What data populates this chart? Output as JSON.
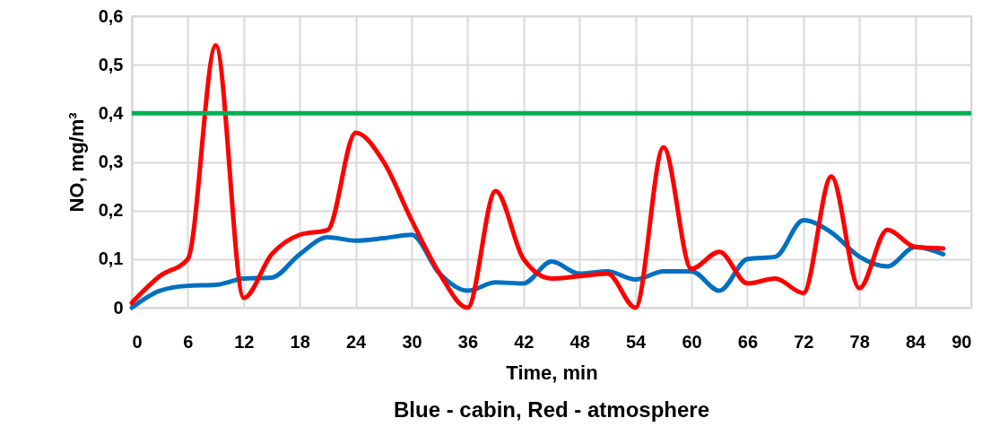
{
  "chart_data": {
    "type": "line",
    "xlabel": "Time, min",
    "ylabel": "NO, mg/m³",
    "annotations": [
      "Blue - cabin, Red - atmosphere"
    ],
    "x": [
      0,
      3,
      6,
      9,
      12,
      15,
      18,
      21,
      24,
      27,
      30,
      33,
      36,
      39,
      42,
      45,
      48,
      51,
      54,
      57,
      60,
      63,
      66,
      69,
      72,
      75,
      78,
      81,
      84,
      87
    ],
    "series": [
      {
        "color": "#0070c0",
        "values": [
          0.0,
          0.035,
          0.045,
          0.047,
          0.06,
          0.062,
          0.11,
          0.145,
          0.138,
          0.143,
          0.15,
          0.07,
          0.035,
          0.052,
          0.05,
          0.095,
          0.07,
          0.075,
          0.058,
          0.075,
          0.075,
          0.035,
          0.1,
          0.105,
          0.18,
          0.155,
          0.105,
          0.085,
          0.125,
          0.11
        ]
      },
      {
        "color": "#ff0000",
        "values": [
          0.01,
          0.065,
          0.1,
          0.54,
          0.02,
          0.11,
          0.15,
          0.16,
          0.36,
          0.3,
          0.18,
          0.07,
          0.0,
          0.24,
          0.1,
          0.06,
          0.065,
          0.07,
          0.0,
          0.33,
          0.08,
          0.115,
          0.05,
          0.06,
          0.03,
          0.27,
          0.04,
          0.16,
          0.125,
          0.122
        ]
      }
    ],
    "ref_lines": [
      {
        "axis": "y",
        "value": 0.4,
        "color": "#00b050"
      }
    ],
    "xlim": [
      0,
      90
    ],
    "xticks": [
      0,
      6,
      12,
      18,
      24,
      30,
      36,
      42,
      48,
      54,
      60,
      66,
      72,
      78,
      84,
      90
    ],
    "ylim": [
      0,
      0.6
    ],
    "yticks": [
      0,
      {
        "value": 0.1,
        "label": "0,1"
      },
      {
        "value": 0.2,
        "label": "0,2"
      },
      {
        "value": 0.3,
        "label": "0,3"
      },
      {
        "value": 0.4,
        "label": "0,4"
      },
      {
        "value": 0.5,
        "label": "0,5"
      },
      {
        "value": 0.6,
        "label": "0,6"
      }
    ],
    "grid": true,
    "marker": "none",
    "line_style": "solid"
  }
}
